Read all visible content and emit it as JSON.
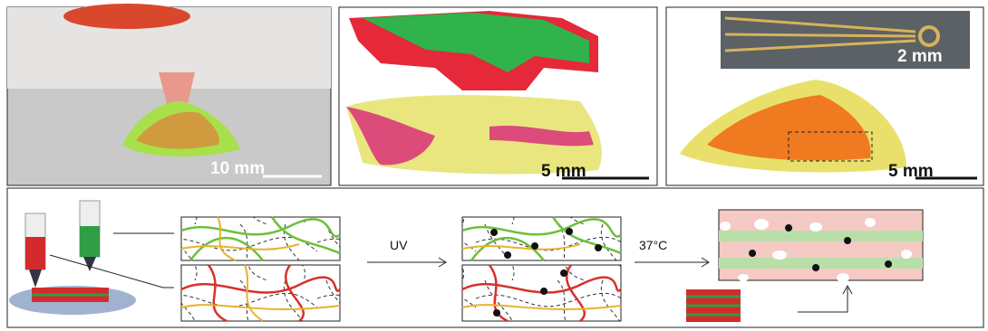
{
  "panels": [
    {
      "scale_label": "10 mm"
    },
    {
      "scale_label": "5 mm"
    },
    {
      "scale_label": "5 mm",
      "inset_scale_label": "2 mm"
    }
  ],
  "schematic": {
    "step_1": "UV",
    "step_2": "37°C"
  }
}
